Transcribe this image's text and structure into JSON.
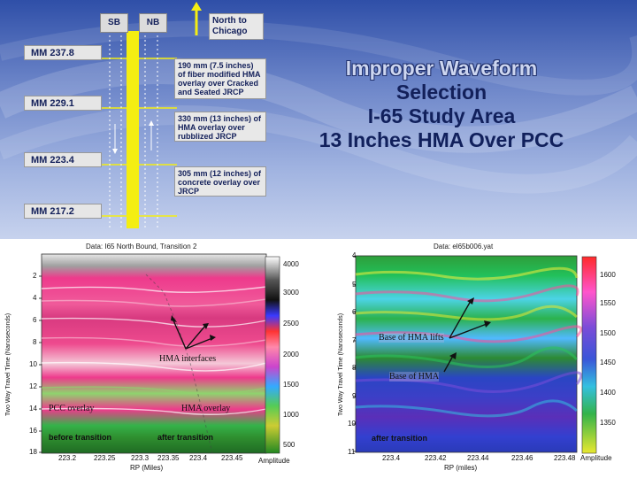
{
  "title": {
    "line1": "Improper Waveform",
    "line2": "Selection",
    "line3": "I-65 Study Area",
    "line4": "13 Inches HMA Over PCC"
  },
  "diagram": {
    "lane_sb": "SB",
    "lane_nb": "NB",
    "north_label": "North to Chicago",
    "mileposts": [
      "MM 237.8",
      "MM 229.1",
      "MM 223.4",
      "MM 217.2"
    ],
    "notes": [
      "190 mm (7.5 inches) of fiber modified HMA overlay over Cracked and Seated JRCP",
      "330 mm (13 inches) of HMA overlay over rubblized JRCP",
      "305 mm (12 inches) of concrete overlay over JRCP"
    ]
  },
  "left_plot": {
    "title": "Data: I65 North Bound, Transition 2",
    "y_ticks": [
      "2",
      "4",
      "6",
      "8",
      "10",
      "12",
      "14",
      "16",
      "18"
    ],
    "x_ticks": [
      "223.2",
      "223.25",
      "223.3",
      "223.35",
      "223.4",
      "223.45"
    ],
    "x_label": "RP (Miles)",
    "y_label": "Two Way Travel Time (Nanoseconds)",
    "colorbar_ticks": [
      "4000",
      "3000",
      "2500",
      "2000",
      "1500",
      "1000",
      "500"
    ],
    "colorbar_label": "Amplitude",
    "annotations": {
      "hma_interfaces": "HMA interfaces",
      "pcc_overlay": "PCC overlay",
      "hma_overlay": "HMA overlay",
      "before_transition": "before transition",
      "after_transition": "after transition"
    }
  },
  "right_plot": {
    "title": "Data: el65b006.yat",
    "y_ticks": [
      "4",
      "5",
      "6",
      "7",
      "8",
      "9",
      "10",
      "11"
    ],
    "x_ticks": [
      "223.4",
      "223.42",
      "223.44",
      "223.46",
      "223.48"
    ],
    "x_label": "RP (miles)",
    "y_label": "Two Way Travel Time (Nanoseconds)",
    "colorbar_ticks": [
      "1600",
      "1550",
      "1500",
      "1450",
      "1400",
      "1350"
    ],
    "colorbar_label": "Amplitude",
    "annotations": {
      "base_hma_lifts": "Base of HMA lifts",
      "base_hma": "Base of HMA",
      "after_transition": "after transition"
    }
  },
  "colors": {
    "title_dark": "#11205c",
    "highway_yellow": "#f4ee12",
    "radar_pink": "#ee3a8c",
    "radar_green": "#35b24a"
  }
}
